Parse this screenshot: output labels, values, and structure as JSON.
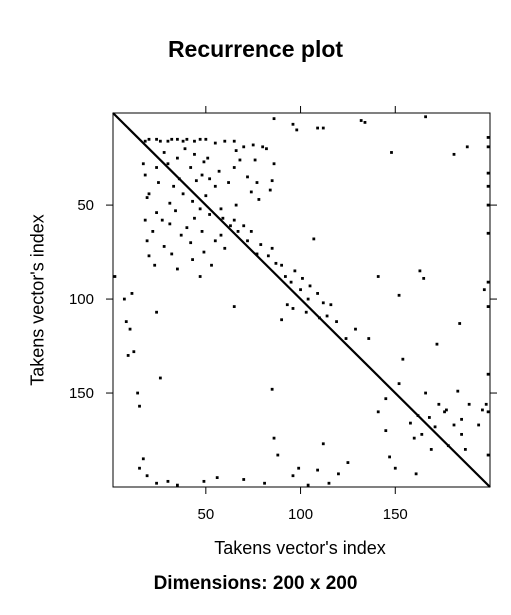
{
  "chart_data": {
    "type": "scatter",
    "title": "Recurrence plot",
    "xlabel": "Takens vector's index",
    "ylabel": "Takens vector's index",
    "caption": "Dimensions: 200 x 200",
    "xlim": [
      1,
      200
    ],
    "ylim": [
      1,
      200
    ],
    "y_reversed": true,
    "x_ticks": [
      50,
      100,
      150
    ],
    "y_ticks": [
      50,
      100,
      150
    ],
    "x_tick_labels": [
      "50",
      "100",
      "150"
    ],
    "y_tick_labels": [
      "50",
      "100",
      "150"
    ],
    "grid": false,
    "marker_color": "#000000",
    "diagonal_line": true,
    "points": [
      [
        18,
        16
      ],
      [
        20,
        15
      ],
      [
        24,
        15
      ],
      [
        26,
        16
      ],
      [
        30,
        16
      ],
      [
        32,
        15
      ],
      [
        35,
        15
      ],
      [
        38,
        16
      ],
      [
        40,
        15
      ],
      [
        44,
        16
      ],
      [
        47,
        15
      ],
      [
        50,
        15
      ],
      [
        55,
        17
      ],
      [
        60,
        16
      ],
      [
        65,
        16
      ],
      [
        66,
        21
      ],
      [
        70,
        19
      ],
      [
        75,
        18
      ],
      [
        80,
        19
      ],
      [
        82,
        20
      ],
      [
        86,
        4
      ],
      [
        96,
        7
      ],
      [
        98,
        10
      ],
      [
        109,
        9
      ],
      [
        112,
        9
      ],
      [
        132,
        5
      ],
      [
        134,
        6
      ],
      [
        148,
        22
      ],
      [
        166,
        3
      ],
      [
        181,
        23
      ],
      [
        188,
        19
      ],
      [
        199,
        14
      ],
      [
        199,
        19
      ],
      [
        199,
        33
      ],
      [
        199,
        40
      ],
      [
        199,
        50
      ],
      [
        199,
        65
      ],
      [
        199,
        91
      ],
      [
        199,
        104
      ],
      [
        199,
        140
      ],
      [
        199,
        160
      ],
      [
        17,
        28
      ],
      [
        18,
        34
      ],
      [
        19,
        46
      ],
      [
        20,
        44
      ],
      [
        24,
        30
      ],
      [
        25,
        38
      ],
      [
        28,
        22
      ],
      [
        30,
        28
      ],
      [
        31,
        49
      ],
      [
        33,
        40
      ],
      [
        35,
        25
      ],
      [
        36,
        36
      ],
      [
        38,
        44
      ],
      [
        39,
        20
      ],
      [
        42,
        30
      ],
      [
        43,
        48
      ],
      [
        44,
        23
      ],
      [
        45,
        37
      ],
      [
        47,
        52
      ],
      [
        48,
        34
      ],
      [
        49,
        27
      ],
      [
        50,
        45
      ],
      [
        51,
        25
      ],
      [
        52,
        36
      ],
      [
        55,
        40
      ],
      [
        57,
        32
      ],
      [
        58,
        52
      ],
      [
        62,
        38
      ],
      [
        65,
        30
      ],
      [
        66,
        50
      ],
      [
        68,
        26
      ],
      [
        72,
        35
      ],
      [
        74,
        43
      ],
      [
        76,
        26
      ],
      [
        77,
        38
      ],
      [
        78,
        47
      ],
      [
        84,
        42
      ],
      [
        85,
        37
      ],
      [
        86,
        28
      ],
      [
        18,
        58
      ],
      [
        19,
        69
      ],
      [
        20,
        77
      ],
      [
        22,
        64
      ],
      [
        23,
        82
      ],
      [
        24,
        54
      ],
      [
        27,
        58
      ],
      [
        28,
        72
      ],
      [
        31,
        60
      ],
      [
        32,
        76
      ],
      [
        34,
        53
      ],
      [
        35,
        84
      ],
      [
        37,
        66
      ],
      [
        40,
        62
      ],
      [
        42,
        70
      ],
      [
        43,
        79
      ],
      [
        44,
        57
      ],
      [
        47,
        88
      ],
      [
        48,
        64
      ],
      [
        49,
        75
      ],
      [
        52,
        55
      ],
      [
        53,
        82
      ],
      [
        55,
        69
      ],
      [
        58,
        66
      ],
      [
        59,
        57
      ],
      [
        60,
        73
      ],
      [
        63,
        61
      ],
      [
        65,
        58
      ],
      [
        67,
        64
      ],
      [
        70,
        61
      ],
      [
        72,
        69
      ],
      [
        74,
        64
      ],
      [
        77,
        76
      ],
      [
        79,
        71
      ],
      [
        83,
        77
      ],
      [
        85,
        73
      ],
      [
        87,
        81
      ],
      [
        90,
        82
      ],
      [
        92,
        88
      ],
      [
        95,
        91
      ],
      [
        96,
        105
      ],
      [
        97,
        85
      ],
      [
        100,
        95
      ],
      [
        103,
        107
      ],
      [
        104,
        100
      ],
      [
        105,
        93
      ],
      [
        107,
        68
      ],
      [
        109,
        97
      ],
      [
        110,
        110
      ],
      [
        112,
        102
      ],
      [
        114,
        109
      ],
      [
        116,
        103
      ],
      [
        119,
        112
      ],
      [
        124,
        121
      ],
      [
        129,
        116
      ],
      [
        136,
        121
      ],
      [
        2,
        88
      ],
      [
        7,
        100
      ],
      [
        8,
        112
      ],
      [
        9,
        130
      ],
      [
        10,
        116
      ],
      [
        11,
        97
      ],
      [
        12,
        128
      ],
      [
        14,
        150
      ],
      [
        15,
        157
      ],
      [
        24,
        107
      ],
      [
        26,
        142
      ],
      [
        65,
        104
      ],
      [
        90,
        111
      ],
      [
        93,
        103
      ],
      [
        101,
        89
      ],
      [
        141,
        88
      ],
      [
        152,
        98
      ],
      [
        163,
        85
      ],
      [
        165,
        89
      ],
      [
        172,
        124
      ],
      [
        184,
        113
      ],
      [
        197,
        95
      ],
      [
        15,
        190
      ],
      [
        17,
        185
      ],
      [
        19,
        194
      ],
      [
        24,
        198
      ],
      [
        30,
        197
      ],
      [
        35,
        199
      ],
      [
        49,
        197
      ],
      [
        56,
        195
      ],
      [
        70,
        196
      ],
      [
        81,
        198
      ],
      [
        85,
        148
      ],
      [
        86,
        174
      ],
      [
        88,
        183
      ],
      [
        96,
        194
      ],
      [
        99,
        190
      ],
      [
        104,
        199
      ],
      [
        109,
        191
      ],
      [
        112,
        177
      ],
      [
        115,
        198
      ],
      [
        120,
        193
      ],
      [
        125,
        187
      ],
      [
        145,
        170
      ],
      [
        147,
        184
      ],
      [
        150,
        190
      ],
      [
        161,
        193
      ],
      [
        164,
        172
      ],
      [
        169,
        180
      ],
      [
        171,
        168
      ],
      [
        178,
        178
      ],
      [
        181,
        167
      ],
      [
        183,
        149
      ],
      [
        185,
        164
      ],
      [
        187,
        180
      ],
      [
        189,
        156
      ],
      [
        194,
        167
      ],
      [
        196,
        159
      ],
      [
        198,
        156
      ],
      [
        199,
        183
      ],
      [
        141,
        160
      ],
      [
        145,
        153
      ],
      [
        152,
        145
      ],
      [
        154,
        132
      ],
      [
        166,
        150
      ],
      [
        168,
        163
      ],
      [
        173,
        156
      ],
      [
        176,
        160
      ],
      [
        177,
        159
      ],
      [
        185,
        172
      ],
      [
        158,
        166
      ],
      [
        160,
        174
      ],
      [
        162,
        162
      ]
    ]
  }
}
